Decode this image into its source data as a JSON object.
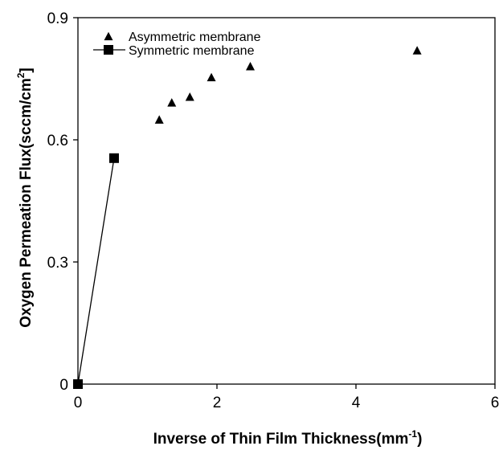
{
  "chart_data": {
    "type": "scatter",
    "title": "",
    "xlabel": {
      "main": "Inverse of Thin Film Thickness(mm",
      "sup": "-1",
      "end": ")"
    },
    "ylabel": {
      "main": "Oxygen Permeation Flux(sccm/cm",
      "sup": "2",
      "end": "]"
    },
    "xlim": [
      0,
      6
    ],
    "ylim": [
      0,
      0.9
    ],
    "xticks": [
      0,
      2,
      4,
      6
    ],
    "xtick_labels": [
      "0",
      "2",
      "4",
      "6"
    ],
    "yticks": [
      0,
      0.3,
      0.6,
      0.9
    ],
    "ytick_labels": [
      "0",
      "0.3",
      "0.6",
      "0.9"
    ],
    "grid": false,
    "legend_position": "top-left",
    "series": [
      {
        "name": "Asymmetric membrane",
        "marker": "triangle",
        "line": false,
        "color": "#000000",
        "points": [
          {
            "x": 1.17,
            "y": 0.648
          },
          {
            "x": 1.35,
            "y": 0.69
          },
          {
            "x": 1.61,
            "y": 0.704
          },
          {
            "x": 1.92,
            "y": 0.752
          },
          {
            "x": 2.48,
            "y": 0.779
          },
          {
            "x": 4.88,
            "y": 0.818
          }
        ]
      },
      {
        "name": "Symmetric membrane",
        "marker": "square",
        "line": true,
        "color": "#000000",
        "points": [
          {
            "x": 0,
            "y": 0
          },
          {
            "x": 0.52,
            "y": 0.555
          }
        ]
      }
    ]
  }
}
